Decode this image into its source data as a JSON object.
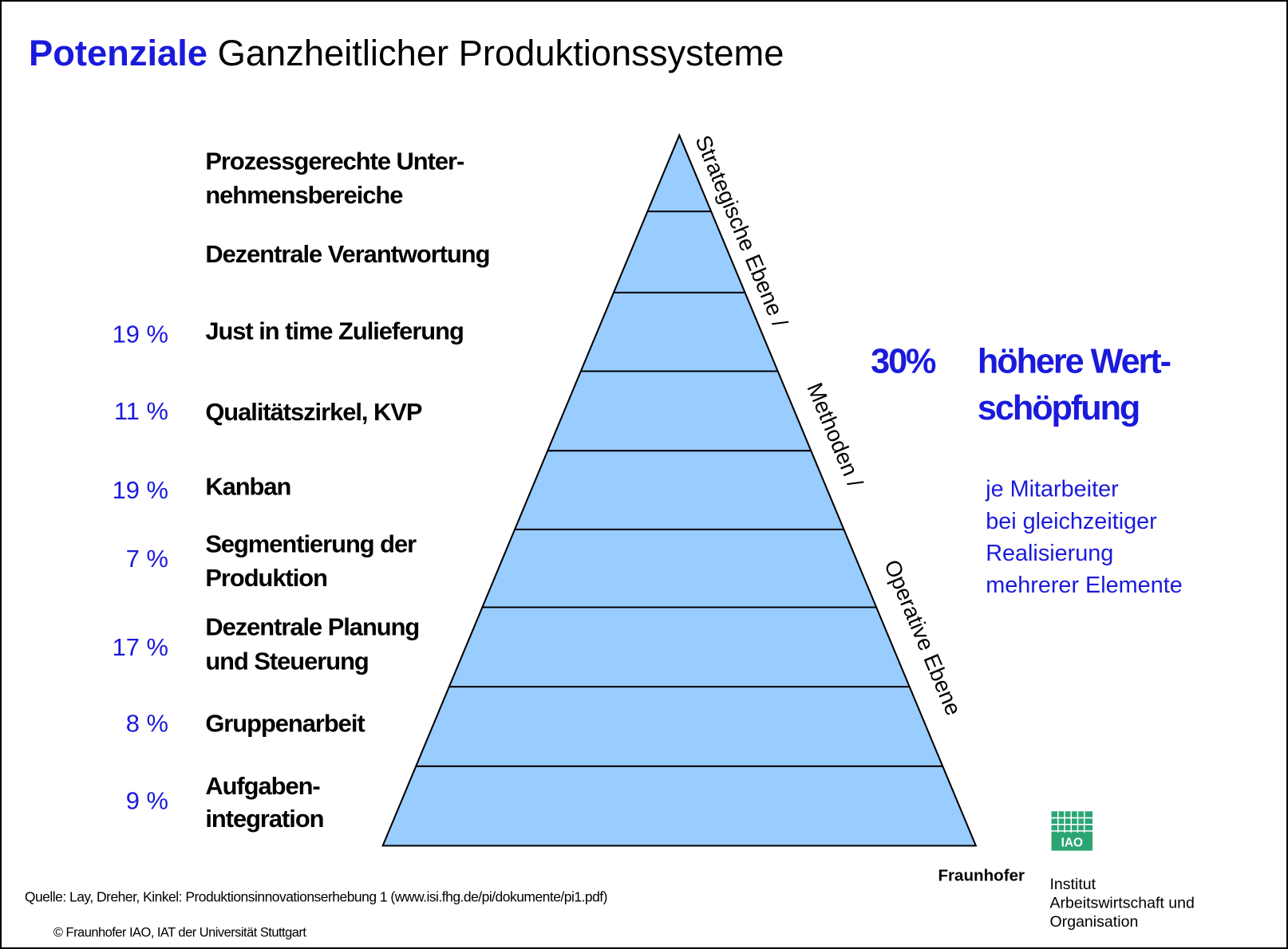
{
  "title": {
    "highlight": "Potenziale",
    "rest": "Ganzheitlicher Produktionssysteme"
  },
  "levels": [
    {
      "label": [
        "Prozessgerechte Unter-",
        "nehmensbereiche"
      ]
    },
    {
      "label": [
        "Dezentrale Verantwortung"
      ]
    },
    {
      "label": [
        "Just in time Zulieferung"
      ],
      "percent": "19 %"
    },
    {
      "label": [
        "Qualitätszirkel, KVP"
      ],
      "percent": "11 %"
    },
    {
      "label": [
        "Kanban"
      ],
      "percent": "19 %"
    },
    {
      "label": [
        "Segmentierung der",
        "Produktion"
      ],
      "percent": "7 %"
    },
    {
      "label": [
        "Dezentrale Planung",
        "und Steuerung"
      ],
      "percent": "17 %"
    },
    {
      "label": [
        "Gruppenarbeit"
      ],
      "percent": "8 %"
    },
    {
      "label": [
        "Aufgaben-",
        "integration"
      ],
      "percent": "9 %"
    }
  ],
  "side_labels": [
    "Strategische Ebene /",
    "Methoden /",
    "Operative Ebene"
  ],
  "headline": {
    "value": "30%",
    "text": [
      "höhere Wert-",
      "schöpfung"
    ]
  },
  "note": [
    "je Mitarbeiter",
    "bei gleichzeitiger",
    "Realisierung",
    "mehrerer Elemente"
  ],
  "source": "Quelle: Lay, Dreher, Kinkel: Produktionsinnovationserhebung 1 (www.isi.fhg.de/pi/dokumente/pi1.pdf)",
  "copyright": "© Fraunhofer IAO, IAT der Universität Stuttgart",
  "logo": {
    "badge": "IAO",
    "name": "Fraunhofer",
    "institute": [
      "Institut",
      "Arbeitswirtschaft und",
      "Organisation"
    ]
  }
}
